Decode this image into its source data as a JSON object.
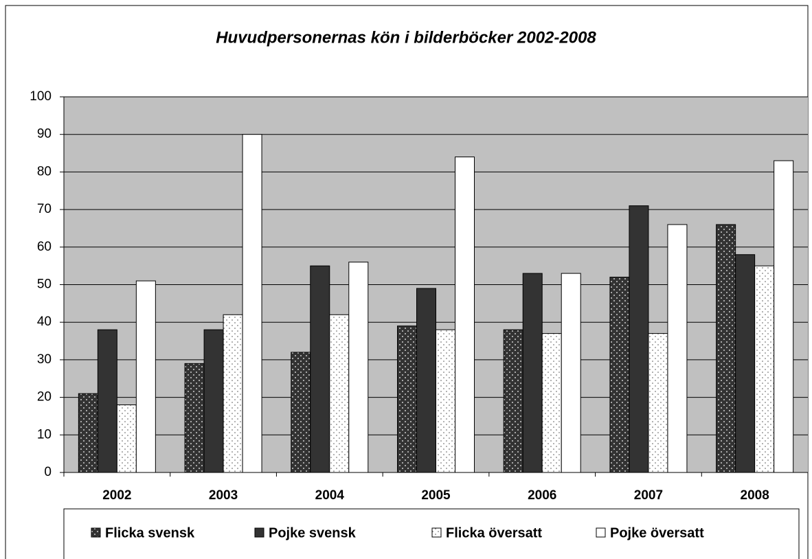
{
  "chart_data": {
    "type": "bar",
    "title": "Huvudpersonernas kön i bilderböcker 2002-2008",
    "categories": [
      "2002",
      "2003",
      "2004",
      "2005",
      "2006",
      "2007",
      "2008"
    ],
    "series": [
      {
        "name": "Flicka svensk",
        "color": "#333333",
        "pattern": "dots",
        "values": [
          21,
          29,
          32,
          39,
          38,
          52,
          66
        ]
      },
      {
        "name": "Pojke svensk",
        "color": "#333333",
        "values": [
          38,
          38,
          55,
          49,
          53,
          71,
          58
        ]
      },
      {
        "name": "Flicka översatt",
        "color": "#ffffff",
        "pattern": "dots",
        "values": [
          18,
          42,
          42,
          38,
          37,
          37,
          55
        ]
      },
      {
        "name": "Pojke översatt",
        "color": "#ffffff",
        "values": [
          51,
          90,
          56,
          84,
          53,
          66,
          83
        ]
      }
    ],
    "ylim": [
      0,
      100
    ],
    "yticks": [
      0,
      10,
      20,
      30,
      40,
      50,
      60,
      70,
      80,
      90,
      100
    ],
    "grid": true,
    "legend": "bottom"
  }
}
